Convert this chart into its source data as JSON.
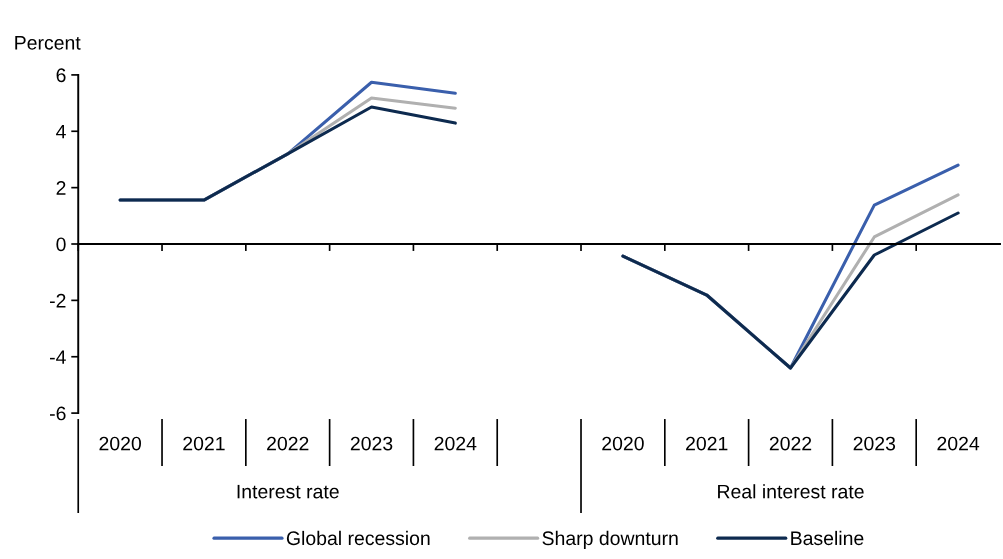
{
  "chart_data": {
    "type": "line",
    "ylabel": "Percent",
    "categories": [
      "2020",
      "2021",
      "2022",
      "2023",
      "2024",
      null,
      "2020",
      "2021",
      "2022",
      "2023",
      "2024"
    ],
    "annotations": [
      "Interest rate",
      "Real interest rate"
    ],
    "series": [
      {
        "name": "Global recession",
        "color": "#3a5fac",
        "values": [
          1.56,
          1.56,
          3.2,
          5.74,
          5.35,
          null,
          -0.43,
          -1.81,
          -4.4,
          1.38,
          2.8
        ]
      },
      {
        "name": "Sharp downturn",
        "color": "#b0b0b0",
        "values": [
          1.56,
          1.56,
          3.2,
          5.18,
          4.82,
          null,
          -0.43,
          -1.81,
          -4.4,
          0.25,
          1.74
        ]
      },
      {
        "name": "Baseline",
        "color": "#0d2a4f",
        "values": [
          1.56,
          1.56,
          3.2,
          4.86,
          4.29,
          null,
          -0.43,
          -1.81,
          -4.4,
          -0.39,
          1.1
        ]
      }
    ],
    "ylim": [
      -6,
      6
    ],
    "yticks": [
      -6,
      -4,
      -2,
      0,
      2,
      4,
      6
    ],
    "legend": "bottom",
    "marker": "none",
    "line_style": "solid"
  }
}
